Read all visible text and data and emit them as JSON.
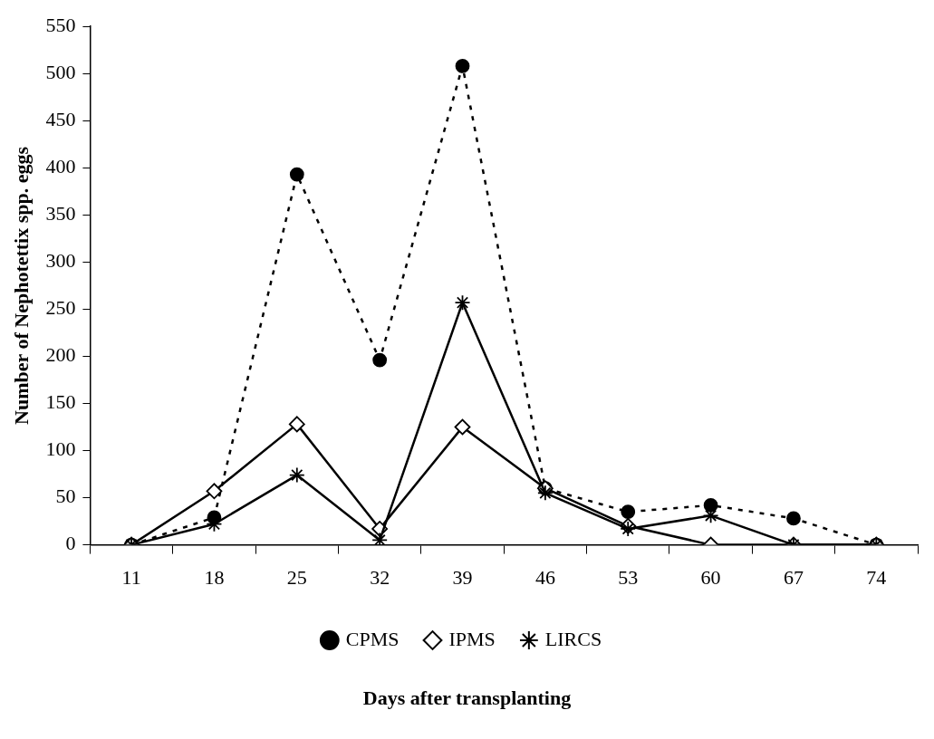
{
  "chart_data": {
    "type": "line",
    "xlabel": "Days after transplanting",
    "ylabel": "Number of Nephotettix spp. eggs",
    "categories": [
      "11",
      "18",
      "25",
      "32",
      "39",
      "46",
      "53",
      "60",
      "67",
      "74"
    ],
    "series": [
      {
        "name": "CPMS",
        "color": "#000000",
        "marker": "circle",
        "line_style": "dashed",
        "values": [
          0,
          29,
          393,
          196,
          508,
          60,
          35,
          42,
          28,
          0
        ]
      },
      {
        "name": "IPMS",
        "color": "#000000",
        "marker": "diamond",
        "line_style": "solid",
        "values": [
          0,
          57,
          128,
          17,
          125,
          60,
          20,
          0,
          0,
          0
        ]
      },
      {
        "name": "LIRCS",
        "color": "#000000",
        "marker": "cross",
        "line_style": "solid",
        "values": [
          0,
          22,
          74,
          5,
          257,
          55,
          17,
          31,
          0,
          0
        ]
      }
    ],
    "ylim": [
      0,
      550
    ],
    "yticks": [
      0,
      50,
      100,
      150,
      200,
      250,
      300,
      350,
      400,
      450,
      500,
      550
    ],
    "grid": false,
    "legend": "bottom"
  }
}
